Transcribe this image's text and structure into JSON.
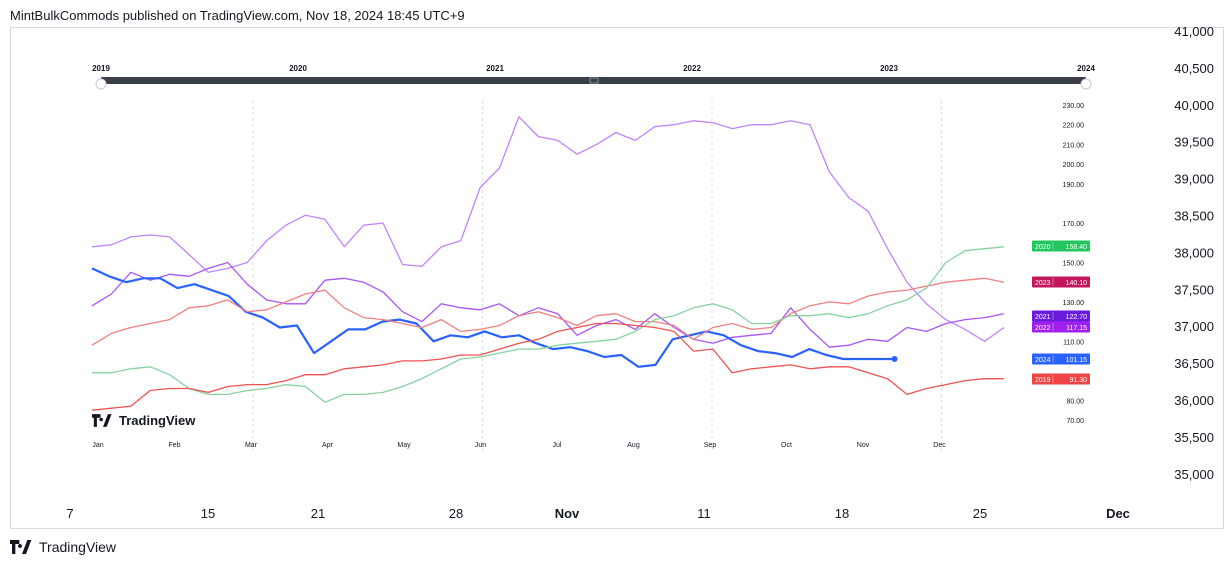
{
  "header": {
    "publisher_line": "MintBulkCommods published on TradingView.com, Nov 18, 2024 18:45 UTC+9"
  },
  "footer": {
    "logo_mark": "17",
    "logo_text": "TradingView"
  },
  "inner_logo": {
    "logo_mark": "17",
    "logo_text": "TradingView"
  },
  "chart_data": [
    {
      "type": "line",
      "role": "outer-price-axis",
      "y_ticks": [
        "41,000",
        "40,500",
        "40,000",
        "39,500",
        "39,000",
        "38,500",
        "38,000",
        "37,500",
        "37,000",
        "36,500",
        "36,000",
        "35,500",
        "35,000"
      ],
      "ylim": [
        35000,
        41000
      ],
      "x_ticks": [
        "7",
        "15",
        "21",
        "28",
        "Nov",
        "11",
        "18",
        "25",
        "Dec"
      ],
      "x_tick_bold": [
        "Nov",
        "Dec"
      ]
    },
    {
      "type": "line",
      "role": "seasonal-comparison",
      "timeline": {
        "years": [
          "2019",
          "2020",
          "2021",
          "2022",
          "2023",
          "2024"
        ]
      },
      "x_ticks": [
        "Jan",
        "Feb",
        "Mar",
        "Apr",
        "May",
        "Jun",
        "Jul",
        "Aug",
        "Sep",
        "Oct",
        "Nov",
        "Dec"
      ],
      "y_ticks": [
        "230.00",
        "220.00",
        "210.00",
        "200.00",
        "190.00",
        "170.00",
        "160.00",
        "150.00",
        "130.00",
        "110.00",
        "100.00",
        "80.00",
        "70.00"
      ],
      "ylim": [
        70,
        230
      ],
      "series": [
        {
          "name": "2022",
          "color": "#c084fc",
          "last": "117.15",
          "badge_color": "#a020f0",
          "values": [
            158,
            159,
            163,
            164,
            163,
            154,
            145,
            147,
            150,
            161,
            169,
            174,
            172,
            158,
            169,
            170,
            149,
            148,
            158,
            161,
            188,
            198,
            224,
            214,
            212,
            205,
            210,
            216,
            212,
            219,
            220,
            222,
            221,
            218,
            220,
            220,
            222,
            220,
            196,
            183,
            176,
            157,
            140,
            129,
            121,
            116,
            110,
            117
          ]
        },
        {
          "name": "2021",
          "color": "#a855f7",
          "last": "122.70",
          "badge_color": "#6a1bdc",
          "values": [
            128,
            134,
            145,
            141,
            144,
            143,
            147,
            150,
            139,
            131,
            129,
            129,
            141,
            142,
            140,
            135,
            125,
            120,
            129,
            127,
            126,
            129,
            123,
            127,
            124,
            113,
            118,
            121,
            116,
            124,
            117,
            111,
            109,
            112,
            113,
            114,
            127,
            116,
            107,
            108,
            111,
            110,
            117,
            115,
            119,
            121,
            122,
            124
          ]
        },
        {
          "name": "2024",
          "color": "#2962ff",
          "last": "101.15",
          "badge_color": "#2962ff",
          "values": [
            147,
            143,
            140,
            142,
            142,
            137,
            139,
            136,
            133,
            125,
            122,
            117,
            118,
            104,
            110,
            116,
            116,
            120,
            121,
            119,
            110,
            113,
            112,
            115,
            112,
            113,
            109,
            106,
            107,
            105,
            102,
            103,
            97,
            98,
            111,
            113,
            115,
            113,
            108,
            105,
            104,
            102,
            106,
            103,
            101,
            101,
            101,
            101
          ]
        },
        {
          "name": "2023",
          "color": "#f08080",
          "last": "140.10",
          "badge_color": "#c2185b",
          "values": [
            108,
            114,
            117,
            119,
            121,
            127,
            128,
            131,
            125,
            126,
            130,
            134,
            136,
            127,
            122,
            121,
            119,
            117,
            121,
            115,
            116,
            118,
            123,
            125,
            122,
            118,
            123,
            124,
            120,
            120,
            118,
            111,
            117,
            119,
            116,
            117,
            124,
            128,
            130,
            129,
            133,
            135,
            136,
            138,
            140,
            141,
            142,
            140
          ]
        },
        {
          "name": "2020",
          "color": "#86d1a0",
          "last": "158.40",
          "badge_color": "#22c55e",
          "values": [
            94,
            94,
            96,
            97,
            93,
            86,
            83,
            83,
            85,
            86,
            88,
            87,
            79,
            83,
            83,
            84,
            87,
            91,
            96,
            101,
            102,
            104,
            106,
            106,
            108,
            109,
            110,
            111,
            115,
            121,
            123,
            127,
            129,
            126,
            119,
            119,
            123,
            123,
            124,
            122,
            124,
            128,
            131,
            137,
            150,
            156,
            157,
            158
          ]
        },
        {
          "name": "2019",
          "color": "#ef5350",
          "last": "91.30",
          "badge_color": "#ef4444",
          "values": [
            75,
            76,
            77,
            85,
            86,
            86,
            84,
            87,
            88,
            88,
            90,
            93,
            93,
            96,
            97,
            98,
            100,
            100,
            101,
            103,
            103,
            106,
            109,
            111,
            115,
            117,
            119,
            119,
            118,
            117,
            115,
            105,
            106,
            94,
            96,
            97,
            98,
            96,
            97,
            97,
            94,
            91,
            83,
            86,
            88,
            90,
            91,
            91
          ]
        }
      ]
    }
  ]
}
